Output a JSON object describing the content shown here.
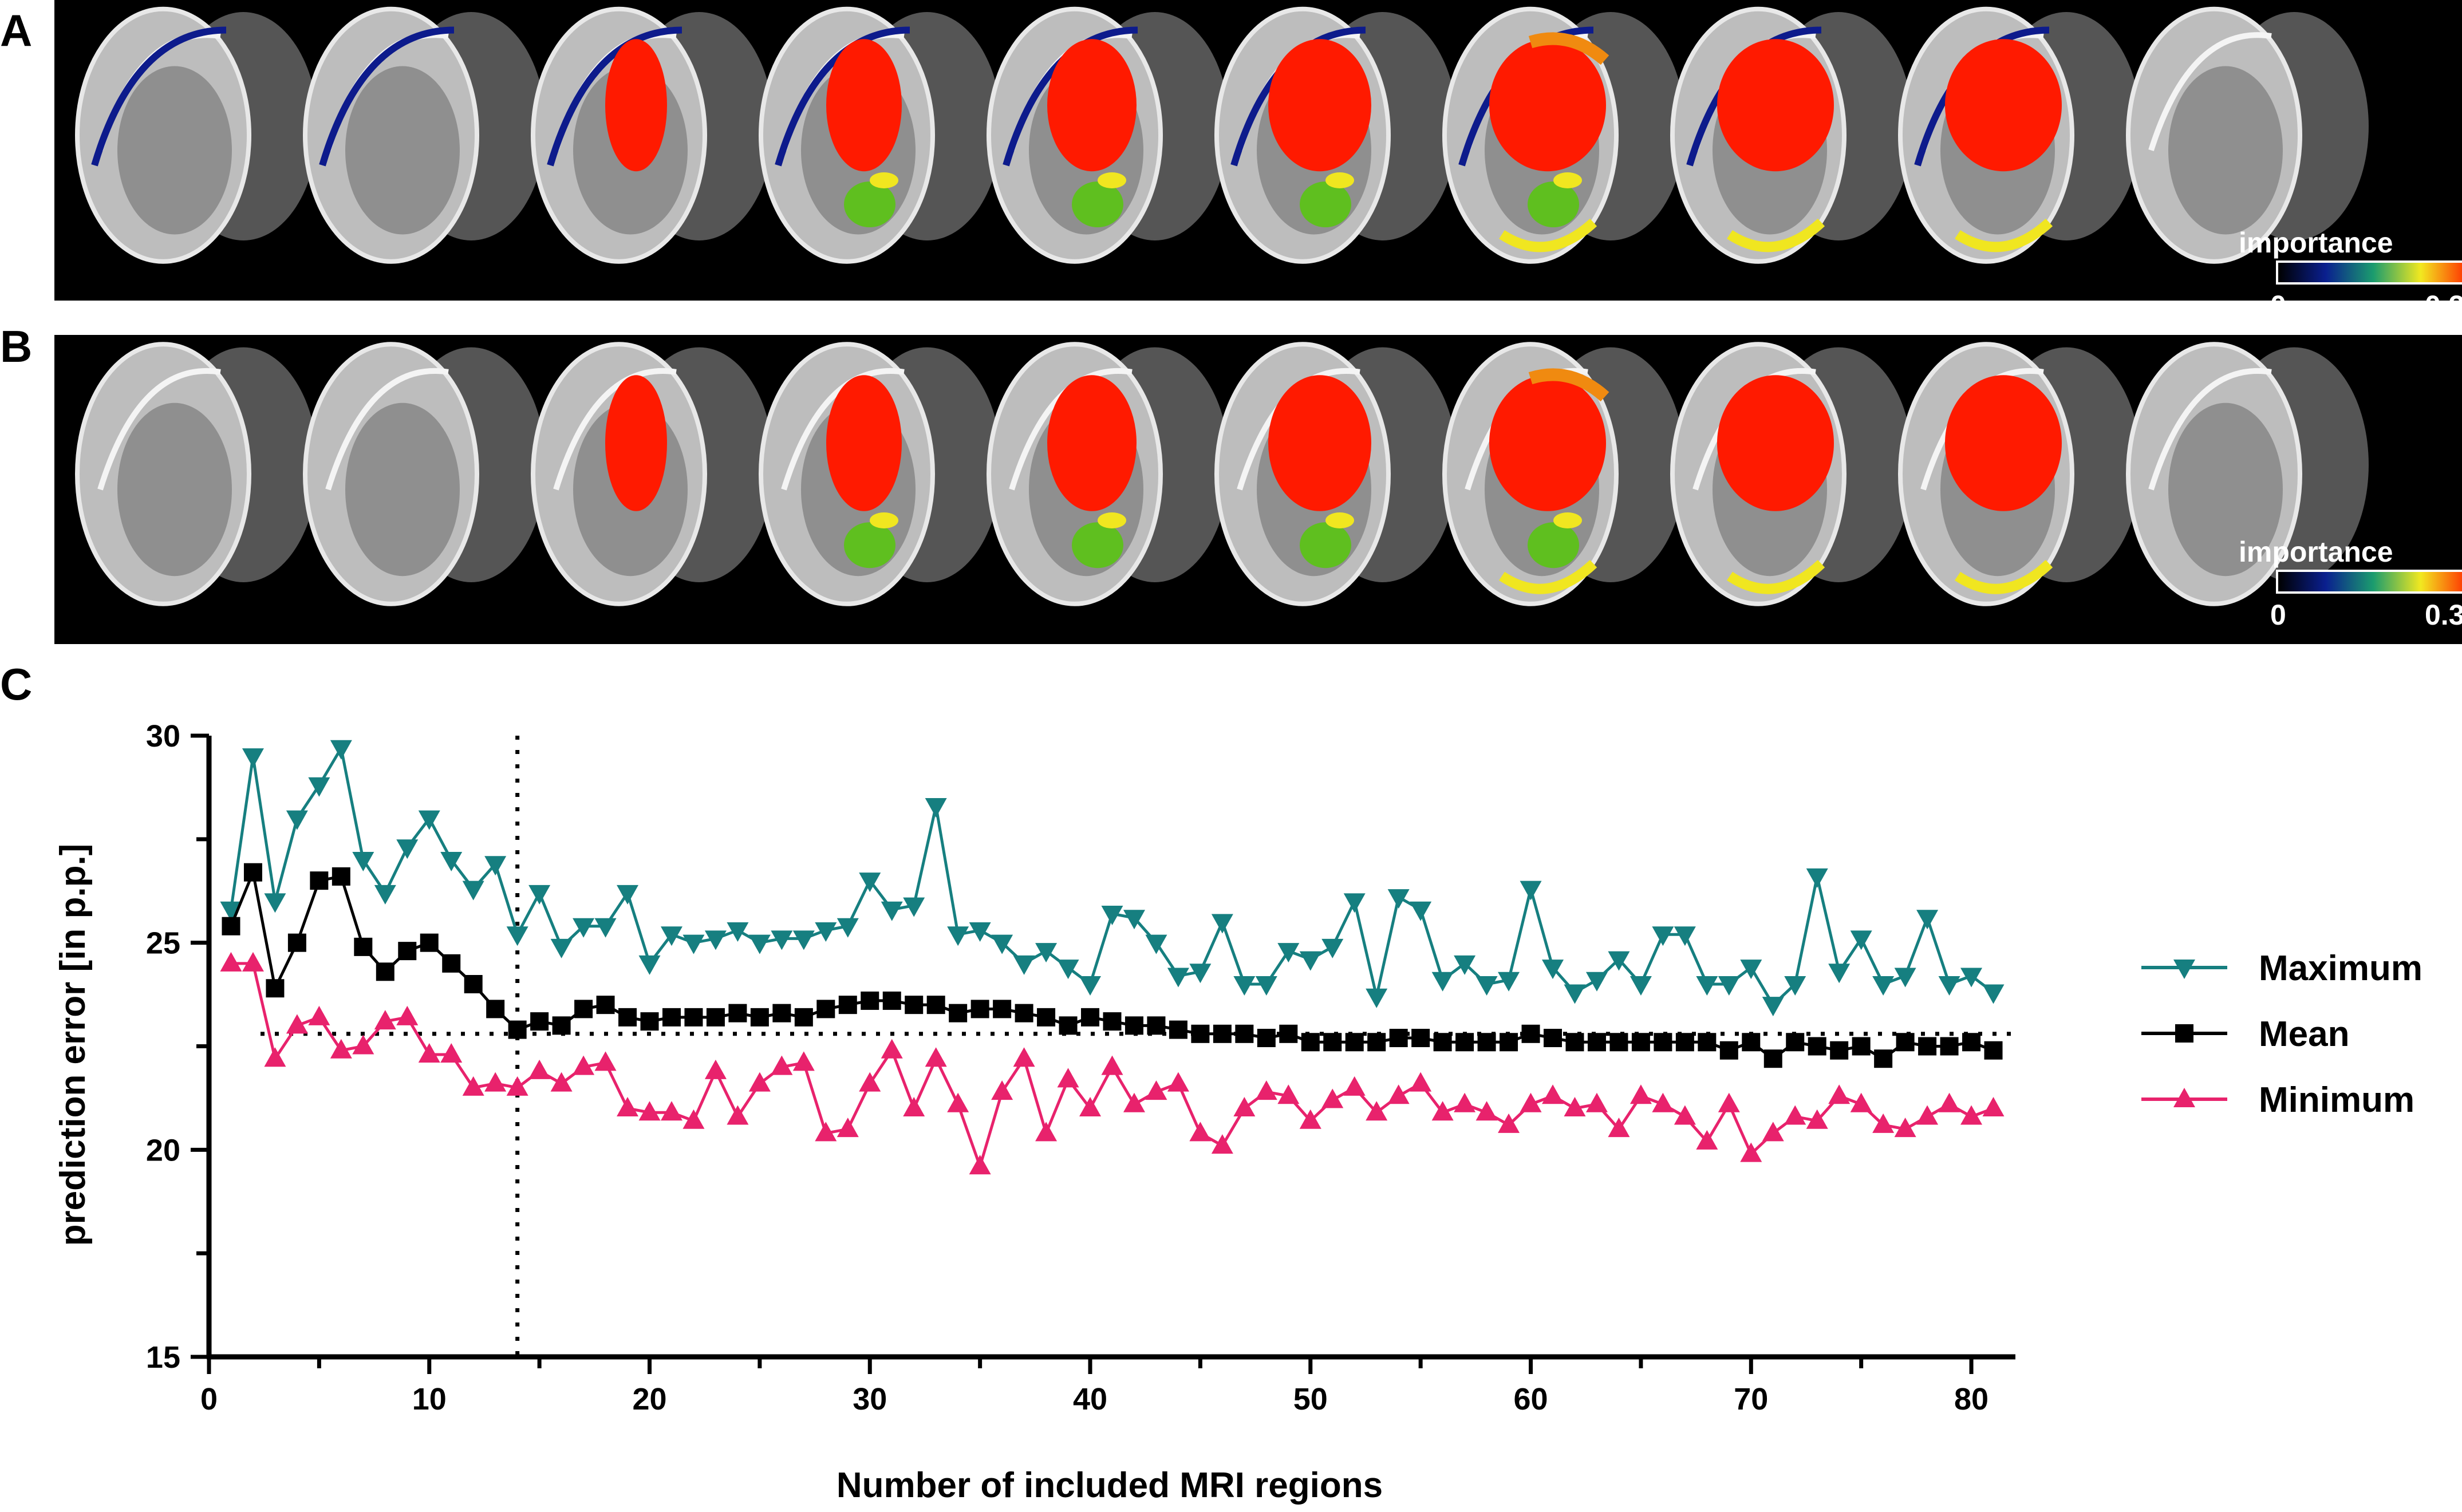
{
  "panels": {
    "a_label": "A",
    "b_label": "B",
    "c_label": "C"
  },
  "colorbar": {
    "label": "importance",
    "min_label": "0",
    "max_label": "0.3",
    "gradient_colors": [
      "#000000",
      "#0a1f8f",
      "#1b9c6e",
      "#f2e820",
      "#ff2a00"
    ]
  },
  "chart_data": {
    "type": "line",
    "xlabel": "Number of included MRI regions",
    "ylabel": "prediction error  [in p.p.]",
    "xlim": [
      0,
      82
    ],
    "ylim": [
      15,
      30
    ],
    "xticks": [
      0,
      10,
      20,
      30,
      40,
      50,
      60,
      70,
      80
    ],
    "yticks": [
      15,
      20,
      25,
      30
    ],
    "reference_lines": {
      "vertical_x": 14,
      "horizontal_y": 22.8
    },
    "legend_position": "right",
    "x": [
      1,
      2,
      3,
      4,
      5,
      6,
      7,
      8,
      9,
      10,
      11,
      12,
      13,
      14,
      15,
      16,
      17,
      18,
      19,
      20,
      21,
      22,
      23,
      24,
      25,
      26,
      27,
      28,
      29,
      30,
      31,
      32,
      33,
      34,
      35,
      36,
      37,
      38,
      39,
      40,
      41,
      42,
      43,
      44,
      45,
      46,
      47,
      48,
      49,
      50,
      51,
      52,
      53,
      54,
      55,
      56,
      57,
      58,
      59,
      60,
      61,
      62,
      63,
      64,
      65,
      66,
      67,
      68,
      69,
      70,
      71,
      72,
      73,
      74,
      75,
      76,
      77,
      78,
      79,
      80,
      81
    ],
    "series": [
      {
        "name": "Maximum",
        "color": "#167f80",
        "marker": "triangle-down",
        "values": [
          25.8,
          29.5,
          26.0,
          28.0,
          28.8,
          29.7,
          27.0,
          26.2,
          27.3,
          28.0,
          27.0,
          26.3,
          26.9,
          25.2,
          26.2,
          24.9,
          25.4,
          25.4,
          26.2,
          24.5,
          25.2,
          25.0,
          25.1,
          25.3,
          25.0,
          25.1,
          25.1,
          25.3,
          25.4,
          26.5,
          25.8,
          25.9,
          28.3,
          25.2,
          25.3,
          25.0,
          24.5,
          24.8,
          24.4,
          24.0,
          25.7,
          25.6,
          25.0,
          24.2,
          24.3,
          25.5,
          24.0,
          24.0,
          24.8,
          24.6,
          24.9,
          26.0,
          23.7,
          26.1,
          25.8,
          24.1,
          24.5,
          24.0,
          24.1,
          26.3,
          24.4,
          23.8,
          24.1,
          24.6,
          24.0,
          25.2,
          25.2,
          24.0,
          24.0,
          24.4,
          23.5,
          24.0,
          26.6,
          24.3,
          25.1,
          24.0,
          24.2,
          25.6,
          24.0,
          24.2,
          23.8
        ]
      },
      {
        "name": "Mean",
        "color": "#000000",
        "marker": "square",
        "values": [
          25.4,
          26.7,
          23.9,
          25.0,
          26.5,
          26.6,
          24.9,
          24.3,
          24.8,
          25.0,
          24.5,
          24.0,
          23.4,
          22.9,
          23.1,
          23.0,
          23.4,
          23.5,
          23.2,
          23.1,
          23.2,
          23.2,
          23.2,
          23.3,
          23.2,
          23.3,
          23.2,
          23.4,
          23.5,
          23.6,
          23.6,
          23.5,
          23.5,
          23.3,
          23.4,
          23.4,
          23.3,
          23.2,
          23.0,
          23.2,
          23.1,
          23.0,
          23.0,
          22.9,
          22.8,
          22.8,
          22.8,
          22.7,
          22.8,
          22.6,
          22.6,
          22.6,
          22.6,
          22.7,
          22.7,
          22.6,
          22.6,
          22.6,
          22.6,
          22.8,
          22.7,
          22.6,
          22.6,
          22.6,
          22.6,
          22.6,
          22.6,
          22.6,
          22.4,
          22.6,
          22.2,
          22.6,
          22.5,
          22.4,
          22.5,
          22.2,
          22.6,
          22.5,
          22.5,
          22.6,
          22.4
        ]
      },
      {
        "name": "Minimum",
        "color": "#e8226c",
        "marker": "triangle-up",
        "values": [
          24.5,
          24.5,
          22.2,
          23.0,
          23.2,
          22.4,
          22.5,
          23.1,
          23.2,
          22.3,
          22.3,
          21.5,
          21.6,
          21.5,
          21.9,
          21.6,
          22.0,
          22.1,
          21.0,
          20.9,
          20.9,
          20.7,
          21.9,
          20.8,
          21.6,
          22.0,
          22.1,
          20.4,
          20.5,
          21.6,
          22.4,
          21.0,
          22.2,
          21.1,
          19.6,
          21.4,
          22.2,
          20.4,
          21.7,
          21.0,
          22.0,
          21.1,
          21.4,
          21.6,
          20.4,
          20.1,
          21.0,
          21.4,
          21.3,
          20.7,
          21.2,
          21.5,
          20.9,
          21.3,
          21.6,
          20.9,
          21.1,
          20.9,
          20.6,
          21.1,
          21.3,
          21.0,
          21.1,
          20.5,
          21.3,
          21.1,
          20.8,
          20.2,
          21.1,
          19.9,
          20.4,
          20.8,
          20.7,
          21.3,
          21.1,
          20.6,
          20.5,
          20.8,
          21.1,
          20.8,
          21.0
        ]
      }
    ]
  }
}
